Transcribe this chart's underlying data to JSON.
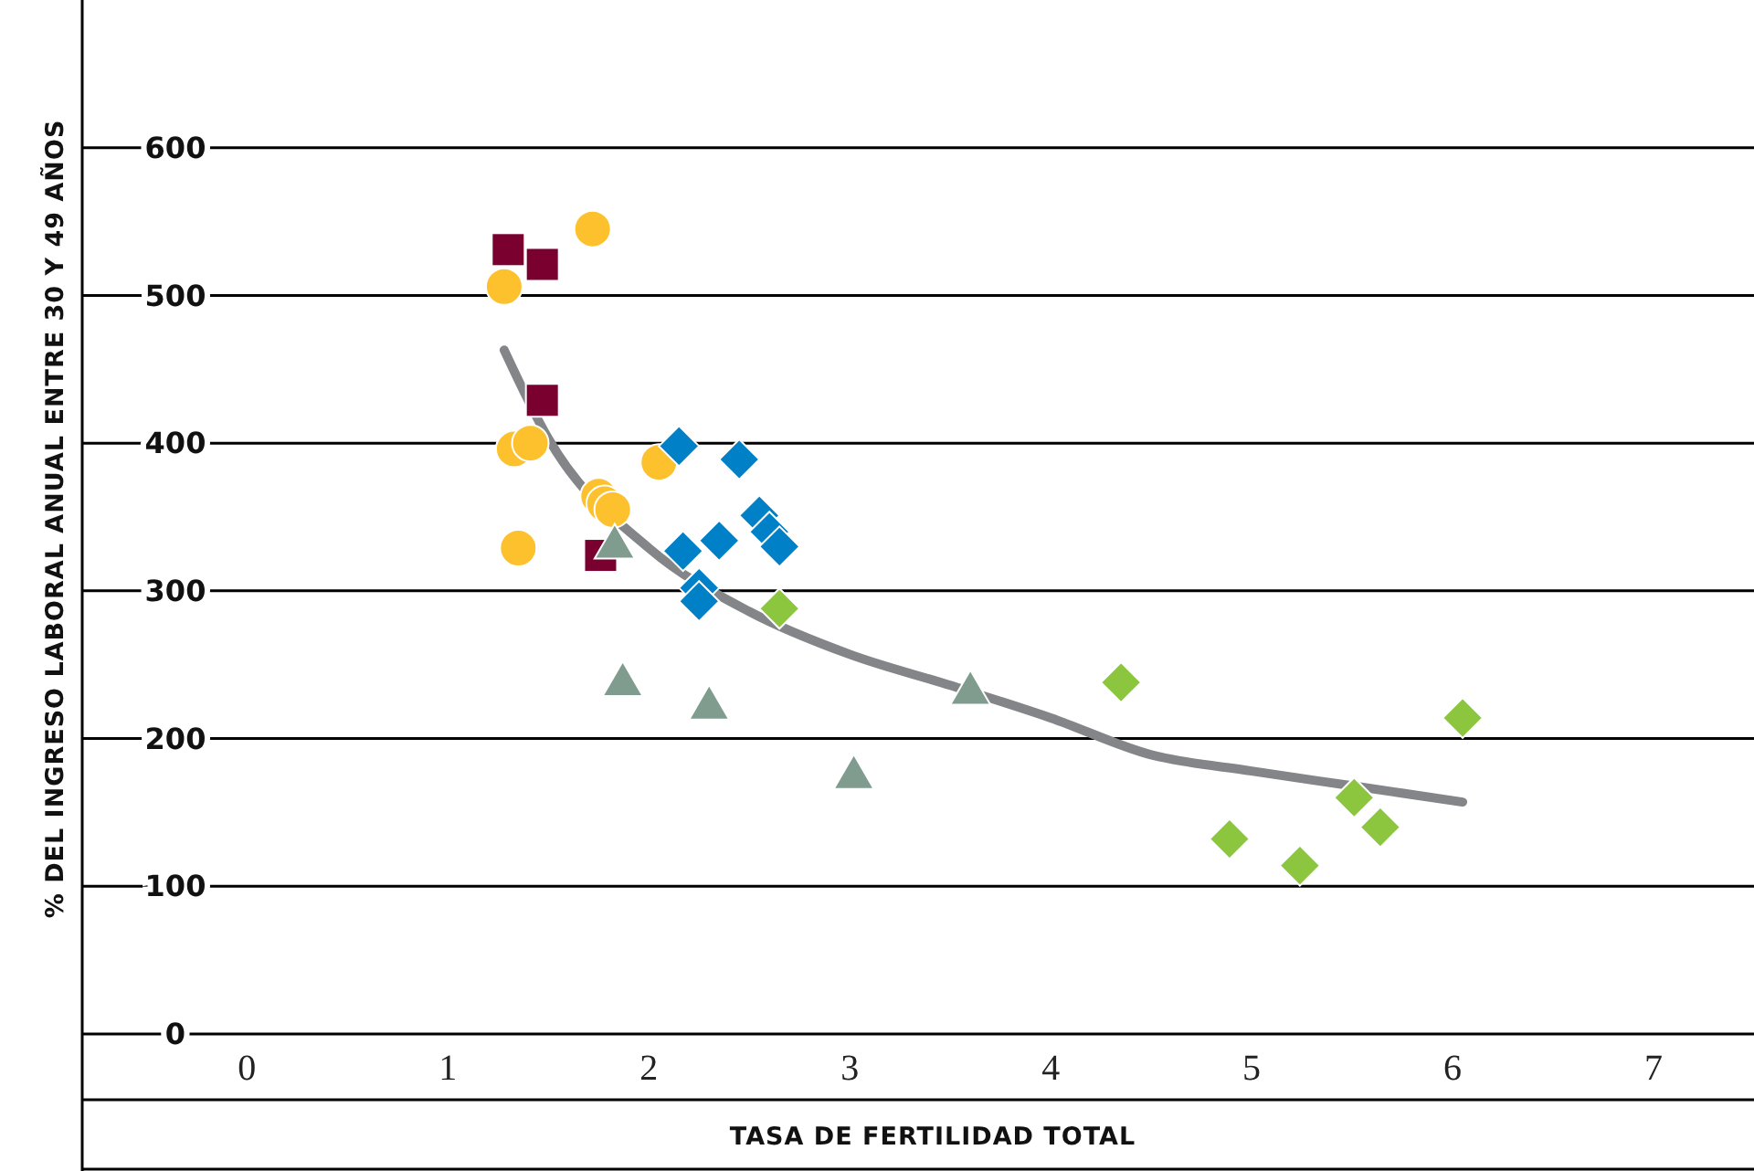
{
  "chart_data": {
    "type": "scatter",
    "xlabel": "TASA DE FERTILIDAD TOTAL",
    "ylabel": "% DEL INGRESO LABORAL ANUAL ENTRE 30 Y 49 AÑOS",
    "xlim": [
      -0.82,
      7.5
    ],
    "xticks": [
      0,
      1,
      2,
      3,
      4,
      5,
      6,
      7
    ],
    "ylim": [
      0,
      700
    ],
    "yticks": [
      0,
      100,
      200,
      300,
      400,
      500,
      600
    ],
    "grid": "y",
    "series": [
      {
        "color": "#7a0030",
        "marker": "square",
        "x": [
          1.3,
          1.47,
          1.47,
          1.76
        ],
        "values": [
          531,
          521,
          429,
          324
        ]
      },
      {
        "color": "#fcc12d",
        "marker": "circle",
        "x": [
          1.72,
          1.28,
          1.33,
          1.41,
          1.75,
          1.78,
          1.82,
          1.35,
          2.05
        ],
        "values": [
          545,
          506,
          396,
          400,
          364,
          359,
          355,
          329,
          387
        ]
      },
      {
        "color": "#0080c6",
        "marker": "diamond",
        "x": [
          2.15,
          2.45,
          2.17,
          2.35,
          2.55,
          2.6,
          2.65,
          2.25,
          2.25
        ],
        "values": [
          398,
          389,
          327,
          334,
          351,
          340,
          330,
          302,
          293
        ]
      },
      {
        "color": "#7f9c8f",
        "marker": "triangle",
        "x": [
          1.83,
          1.87,
          2.3,
          3.02,
          3.6
        ],
        "values": [
          333,
          240,
          224,
          177,
          234
        ]
      },
      {
        "color": "#8cc63f",
        "marker": "diamond",
        "x": [
          2.65,
          4.35,
          6.05,
          5.51,
          5.64,
          4.89,
          5.24
        ],
        "values": [
          288,
          238,
          214,
          160,
          140,
          132,
          114
        ]
      },
      {
        "type": "line",
        "color": "#848589",
        "marker": "none",
        "x": [
          1.28,
          1.5,
          2,
          2.5,
          3,
          3.5,
          4,
          4.5,
          5,
          5.5,
          6.05
        ],
        "values": [
          463,
          403,
          329,
          286,
          257,
          236,
          214,
          189,
          178,
          168,
          157
        ]
      }
    ]
  }
}
